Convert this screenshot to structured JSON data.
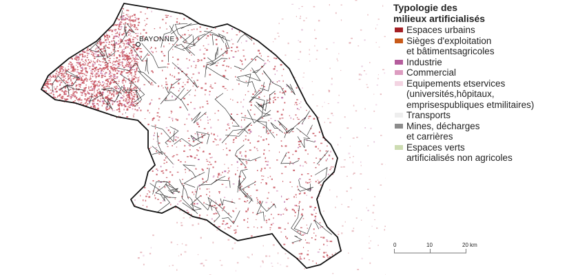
{
  "map": {
    "city_label": "BAYONNE"
  },
  "legend": {
    "title_line1": "Typologie des",
    "title_line2": "milieux artificialisés",
    "items": [
      {
        "label": "Espaces urbains",
        "color": "#a31f24"
      },
      {
        "label": "Sièges d'exploitation\net bâtimentsagricoles",
        "color": "#c85a19"
      },
      {
        "label": "Industrie",
        "color": "#b45c9c"
      },
      {
        "label": "Commercial",
        "color": "#dc9cc0"
      },
      {
        "label": "Equipements etservices\n(universités,hôpitaux,\nemprisespubliques etmilitaires)",
        "color": "#f3d4e2"
      },
      {
        "label": "Transports",
        "color": "#eeeeee"
      },
      {
        "label": "Mines, décharges\net carrières",
        "color": "#8c8c8c"
      },
      {
        "label": "Espaces verts\nartificialisés non agricoles",
        "color": "#cddcb2"
      }
    ]
  },
  "scale": {
    "ticks": [
      "0",
      "10",
      "20 km"
    ]
  }
}
